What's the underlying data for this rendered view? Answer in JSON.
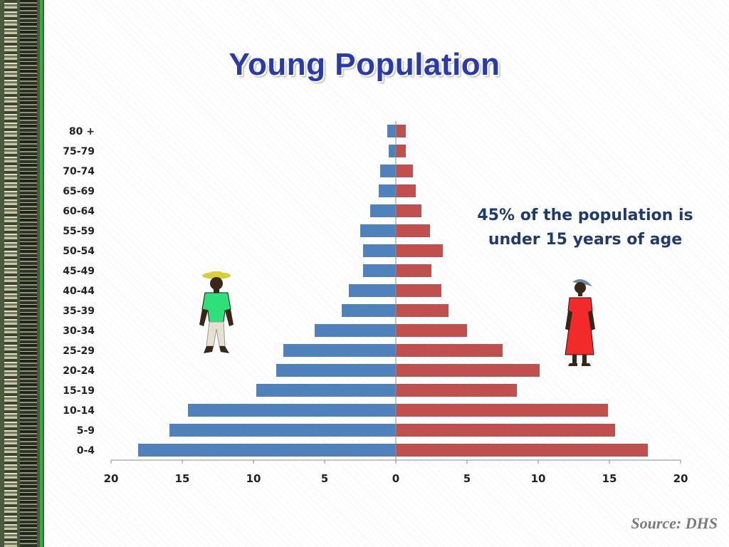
{
  "title": "Young Population",
  "callout": "45% of the population is under 15 years of age",
  "source": "Source: DHS",
  "colors": {
    "male": "#4f81bd",
    "female": "#c0504d",
    "title": "#2a3aa8",
    "callout": "#1f3a6e"
  },
  "icons": {
    "male_figure": "man-figure-icon",
    "female_figure": "woman-figure-icon"
  },
  "chart_data": {
    "type": "bar",
    "orientation": "horizontal",
    "categories": [
      "80 +",
      "75-79",
      "70-74",
      "65-69",
      "60-64",
      "55-59",
      "50-54",
      "45-49",
      "40-44",
      "35-39",
      "30-34",
      "25-29",
      "20-24",
      "15-19",
      "10-14",
      "5-9",
      "0-4"
    ],
    "series": [
      {
        "values": [
          0.6,
          0.5,
          1.1,
          1.2,
          1.8,
          2.5,
          2.3,
          2.3,
          3.3,
          3.8,
          5.7,
          7.9,
          8.4,
          9.8,
          14.6,
          15.9,
          18.1
        ]
      },
      {
        "values": [
          0.7,
          0.7,
          1.2,
          1.4,
          1.8,
          2.4,
          3.3,
          2.5,
          3.2,
          3.7,
          5.0,
          7.5,
          10.1,
          8.5,
          14.9,
          15.4,
          17.7
        ]
      }
    ],
    "xticks": [
      "20",
      "15",
      "10",
      "5",
      "0",
      "5",
      "10",
      "15",
      "20"
    ],
    "xlim": [
      -20,
      20
    ],
    "xlabel": "",
    "ylabel": "",
    "grid": false,
    "legend": "none"
  }
}
